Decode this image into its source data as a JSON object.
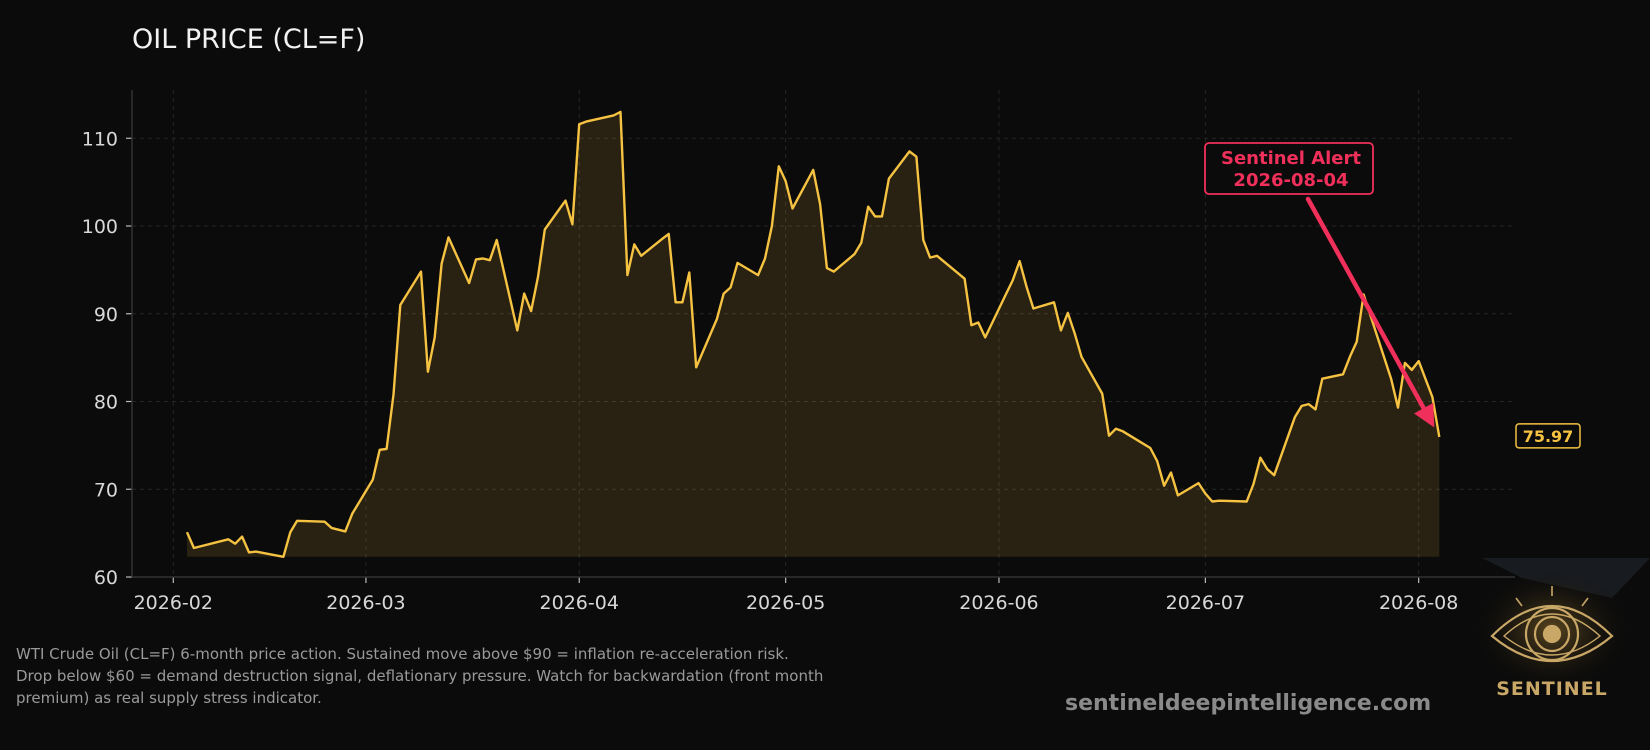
{
  "chart_data": {
    "type": "area",
    "title": "OIL PRICE (CL=F)",
    "xlabel": "",
    "ylabel": "",
    "x_ticks": [
      "2026-02",
      "2026-03",
      "2026-04",
      "2026-05",
      "2026-06",
      "2026-07",
      "2026-08"
    ],
    "y_ticks": [
      60,
      70,
      80,
      90,
      100,
      110
    ],
    "ylim": [
      60,
      115.5
    ],
    "xlim": [
      "2026-01-26",
      "2026-08-15"
    ],
    "grid": true,
    "series": [
      {
        "color": "#f5c242",
        "points": [
          [
            "2026-02-03",
            65.1
          ],
          [
            "2026-02-04",
            63.3
          ],
          [
            "2026-02-09",
            64.3
          ],
          [
            "2026-02-10",
            63.8
          ],
          [
            "2026-02-11",
            64.6
          ],
          [
            "2026-02-12",
            62.8
          ],
          [
            "2026-02-13",
            62.9
          ],
          [
            "2026-02-17",
            62.3
          ],
          [
            "2026-02-18",
            65.1
          ],
          [
            "2026-02-19",
            66.4
          ],
          [
            "2026-02-23",
            66.3
          ],
          [
            "2026-02-24",
            65.6
          ],
          [
            "2026-02-26",
            65.2
          ],
          [
            "2026-02-27",
            67.2
          ],
          [
            "2026-03-02",
            71.1
          ],
          [
            "2026-03-03",
            74.5
          ],
          [
            "2026-03-04",
            74.6
          ],
          [
            "2026-03-05",
            80.8
          ],
          [
            "2026-03-06",
            91.0
          ],
          [
            "2026-03-09",
            94.8
          ],
          [
            "2026-03-10",
            83.4
          ],
          [
            "2026-03-11",
            87.3
          ],
          [
            "2026-03-12",
            95.7
          ],
          [
            "2026-03-13",
            98.7
          ],
          [
            "2026-03-16",
            93.5
          ],
          [
            "2026-03-17",
            96.2
          ],
          [
            "2026-03-18",
            96.3
          ],
          [
            "2026-03-19",
            96.1
          ],
          [
            "2026-03-20",
            98.4
          ],
          [
            "2026-03-23",
            88.1
          ],
          [
            "2026-03-24",
            92.3
          ],
          [
            "2026-03-25",
            90.3
          ],
          [
            "2026-03-26",
            94.2
          ],
          [
            "2026-03-27",
            99.6
          ],
          [
            "2026-03-30",
            102.9
          ],
          [
            "2026-03-31",
            100.2
          ],
          [
            "2026-04-01",
            111.6
          ],
          [
            "2026-04-02",
            111.9
          ],
          [
            "2026-04-06",
            112.6
          ],
          [
            "2026-04-07",
            113.0
          ],
          [
            "2026-04-08",
            94.4
          ],
          [
            "2026-04-09",
            97.9
          ],
          [
            "2026-04-10",
            96.6
          ],
          [
            "2026-04-13",
            98.5
          ],
          [
            "2026-04-14",
            99.1
          ],
          [
            "2026-04-15",
            91.3
          ],
          [
            "2026-04-16",
            91.3
          ],
          [
            "2026-04-17",
            94.7
          ],
          [
            "2026-04-18",
            83.9
          ],
          [
            "2026-04-21",
            89.4
          ],
          [
            "2026-04-22",
            92.3
          ],
          [
            "2026-04-23",
            93.0
          ],
          [
            "2026-04-24",
            95.8
          ],
          [
            "2026-04-27",
            94.4
          ],
          [
            "2026-04-28",
            96.3
          ],
          [
            "2026-04-29",
            100.0
          ],
          [
            "2026-04-30",
            106.8
          ],
          [
            "2026-05-01",
            105.1
          ],
          [
            "2026-05-02",
            102.0
          ],
          [
            "2026-05-05",
            106.4
          ],
          [
            "2026-05-06",
            102.5
          ],
          [
            "2026-05-07",
            95.2
          ],
          [
            "2026-05-08",
            94.8
          ],
          [
            "2026-05-11",
            96.8
          ],
          [
            "2026-05-12",
            98.1
          ],
          [
            "2026-05-13",
            102.2
          ],
          [
            "2026-05-14",
            101.1
          ],
          [
            "2026-05-15",
            101.1
          ],
          [
            "2026-05-16",
            105.4
          ],
          [
            "2026-05-19",
            108.5
          ],
          [
            "2026-05-20",
            107.9
          ],
          [
            "2026-05-21",
            98.4
          ],
          [
            "2026-05-22",
            96.4
          ],
          [
            "2026-05-23",
            96.6
          ],
          [
            "2026-05-27",
            94.0
          ],
          [
            "2026-05-28",
            88.7
          ],
          [
            "2026-05-29",
            89.0
          ],
          [
            "2026-05-30",
            87.3
          ],
          [
            "2026-06-02",
            92.2
          ],
          [
            "2026-06-03",
            93.8
          ],
          [
            "2026-06-04",
            96.0
          ],
          [
            "2026-06-05",
            93.1
          ],
          [
            "2026-06-06",
            90.6
          ],
          [
            "2026-06-09",
            91.3
          ],
          [
            "2026-06-10",
            88.1
          ],
          [
            "2026-06-11",
            90.1
          ],
          [
            "2026-06-12",
            87.8
          ],
          [
            "2026-06-13",
            85.1
          ],
          [
            "2026-06-16",
            80.9
          ],
          [
            "2026-06-17",
            76.1
          ],
          [
            "2026-06-18",
            76.9
          ],
          [
            "2026-06-19",
            76.6
          ],
          [
            "2026-06-23",
            74.7
          ],
          [
            "2026-06-24",
            73.2
          ],
          [
            "2026-06-25",
            70.4
          ],
          [
            "2026-06-26",
            71.9
          ],
          [
            "2026-06-27",
            69.3
          ],
          [
            "2026-06-30",
            70.7
          ],
          [
            "2026-07-01",
            69.5
          ],
          [
            "2026-07-02",
            68.6
          ],
          [
            "2026-07-03",
            68.7
          ],
          [
            "2026-07-07",
            68.6
          ],
          [
            "2026-07-08",
            70.6
          ],
          [
            "2026-07-09",
            73.6
          ],
          [
            "2026-07-10",
            72.3
          ],
          [
            "2026-07-11",
            71.6
          ],
          [
            "2026-07-14",
            78.2
          ],
          [
            "2026-07-15",
            79.5
          ],
          [
            "2026-07-16",
            79.7
          ],
          [
            "2026-07-17",
            79.1
          ],
          [
            "2026-07-18",
            82.6
          ],
          [
            "2026-07-21",
            83.1
          ],
          [
            "2026-07-22",
            85.1
          ],
          [
            "2026-07-23",
            86.8
          ],
          [
            "2026-07-24",
            92.2
          ],
          [
            "2026-07-28",
            82.6
          ],
          [
            "2026-07-29",
            79.3
          ],
          [
            "2026-07-30",
            84.4
          ],
          [
            "2026-07-31",
            83.6
          ],
          [
            "2026-08-01",
            84.6
          ],
          [
            "2026-08-03",
            80.5
          ],
          [
            "2026-08-04",
            75.97
          ]
        ]
      }
    ],
    "last_value_label": "75.97",
    "annotation": {
      "lines": [
        "Sentinel Alert",
        "2026-08-04"
      ],
      "target_date": "2026-08-04",
      "target_value": 76.7,
      "color": "#f0305a"
    }
  },
  "caption": {
    "line1": "WTI Crude Oil (CL=F) 6-month price action. Sustained move above $90 = inflation re-acceleration risk.",
    "line2": "Drop below $60 = demand destruction signal, deflationary pressure. Watch for backwardation (front month",
    "line3": "premium) as real supply stress indicator."
  },
  "website": "sentineldeepintelligence.com",
  "logo": {
    "text": "SENTINEL",
    "icon": "eye-icon"
  },
  "colors": {
    "background": "#0b0b0b",
    "line": "#f5c242",
    "accent": "#f0305a",
    "text": "#e0e0e0"
  }
}
